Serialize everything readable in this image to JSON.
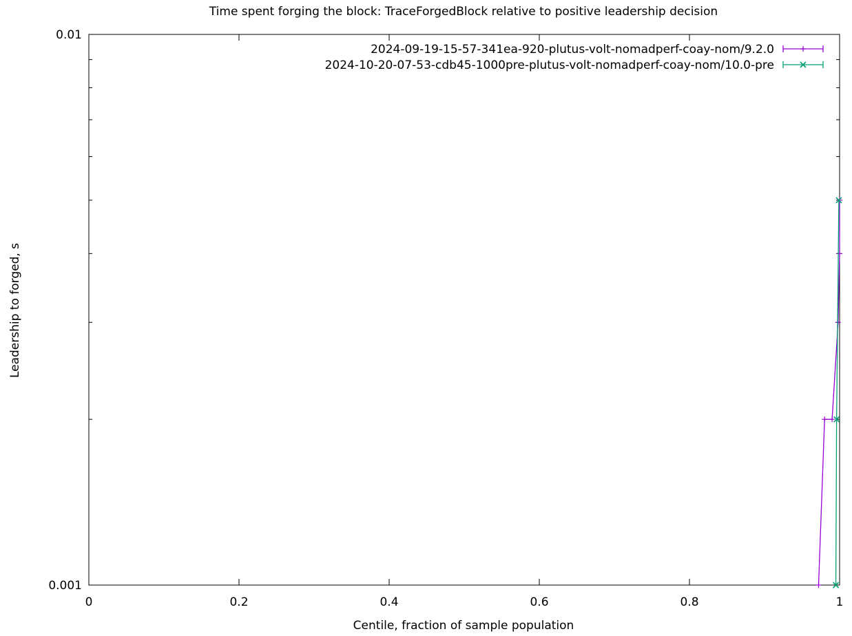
{
  "chart_data": {
    "type": "line",
    "title": "Time spent forging the block: TraceForgedBlock relative to positive leadership decision",
    "xlabel": "Centile, fraction of sample population",
    "ylabel": "Leadership to forged, s",
    "xlim": [
      0,
      1
    ],
    "ylim": [
      0.001,
      0.01
    ],
    "yscale": "log",
    "grid": false,
    "legend_position": "top-right",
    "x_ticks": [
      {
        "value": 0,
        "label": "0"
      },
      {
        "value": 0.2,
        "label": "0.2"
      },
      {
        "value": 0.4,
        "label": "0.4"
      },
      {
        "value": 0.6,
        "label": "0.6"
      },
      {
        "value": 0.8,
        "label": "0.8"
      },
      {
        "value": 1,
        "label": "1"
      }
    ],
    "y_ticks": [
      {
        "value": 0.001,
        "label": "0.001"
      },
      {
        "value": 0.01,
        "label": "0.01"
      }
    ],
    "series": [
      {
        "name": "2024-09-19-15-57-341ea-920-plutus-volt-nomadperf-coay-nom/9.2.0",
        "color": "#9400d3",
        "marker": "plus",
        "points": [
          {
            "x": 0.972,
            "y": 0.001
          },
          {
            "x": 0.98,
            "y": 0.002
          },
          {
            "x": 0.99,
            "y": 0.002
          },
          {
            "x": 0.998,
            "y": 0.003
          },
          {
            "x": 1.0,
            "y": 0.004
          },
          {
            "x": 1.0,
            "y": 0.005
          }
        ]
      },
      {
        "name": "2024-10-20-07-53-cdb45-1000pre-plutus-volt-nomadperf-coay-nom/10.0-pre",
        "color": "#009e73",
        "marker": "cross",
        "points": [
          {
            "x": 0.995,
            "y": 0.001
          },
          {
            "x": 0.996,
            "y": 0.002
          },
          {
            "x": 0.999,
            "y": 0.005
          }
        ]
      }
    ]
  }
}
